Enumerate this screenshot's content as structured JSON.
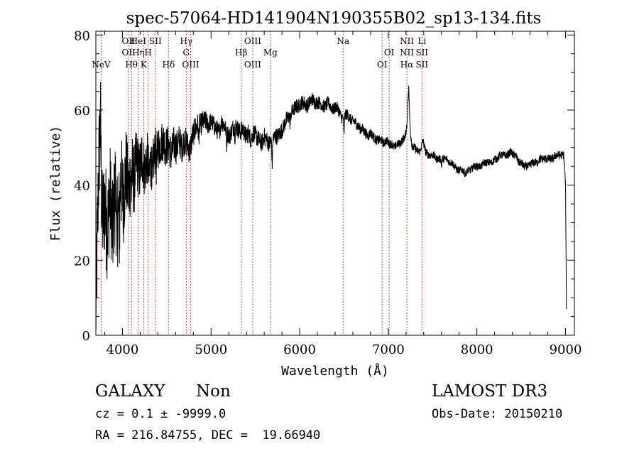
{
  "chart_data": {
    "type": "line",
    "title": "spec-57064-HD141904N190355B02_sp13-134.fits",
    "xlabel": "Wavelength (Å)",
    "ylabel": "Flux (relative)",
    "xlim": [
      3700,
      9100
    ],
    "ylim": [
      0,
      81
    ],
    "xticks": [
      4000,
      5000,
      6000,
      7000,
      8000,
      9000
    ],
    "yticks": [
      0,
      20,
      40,
      60,
      80
    ],
    "grid": false,
    "line_color": "#000000",
    "marker_color": "#b22222",
    "anchors": [
      [
        3700,
        5
      ],
      [
        3730,
        42
      ],
      [
        3750,
        58
      ],
      [
        3770,
        30
      ],
      [
        3800,
        35
      ],
      [
        3830,
        28
      ],
      [
        3860,
        38
      ],
      [
        3890,
        27
      ],
      [
        3920,
        40
      ],
      [
        3950,
        30
      ],
      [
        3980,
        42
      ],
      [
        4010,
        36
      ],
      [
        4040,
        44
      ],
      [
        4070,
        38
      ],
      [
        4100,
        45
      ],
      [
        4130,
        41
      ],
      [
        4160,
        47
      ],
      [
        4190,
        43
      ],
      [
        4220,
        48
      ],
      [
        4250,
        44
      ],
      [
        4280,
        47
      ],
      [
        4310,
        46
      ],
      [
        4340,
        45
      ],
      [
        4370,
        49
      ],
      [
        4400,
        50
      ],
      [
        4430,
        51
      ],
      [
        4460,
        52
      ],
      [
        4490,
        50
      ],
      [
        4520,
        51
      ],
      [
        4550,
        48
      ],
      [
        4580,
        51
      ],
      [
        4610,
        50
      ],
      [
        4640,
        52
      ],
      [
        4670,
        50
      ],
      [
        4700,
        52
      ],
      [
        4730,
        51
      ],
      [
        4760,
        49
      ],
      [
        4790,
        53
      ],
      [
        4820,
        55
      ],
      [
        4850,
        56
      ],
      [
        4880,
        56
      ],
      [
        4910,
        57
      ],
      [
        4940,
        57
      ],
      [
        4970,
        56
      ],
      [
        5000,
        57
      ],
      [
        5030,
        56
      ],
      [
        5060,
        55
      ],
      [
        5090,
        54
      ],
      [
        5120,
        57
      ],
      [
        5150,
        56
      ],
      [
        5180,
        54
      ],
      [
        5210,
        53
      ],
      [
        5240,
        55
      ],
      [
        5270,
        56
      ],
      [
        5300,
        55
      ],
      [
        5330,
        54
      ],
      [
        5360,
        55
      ],
      [
        5390,
        53
      ],
      [
        5420,
        54
      ],
      [
        5450,
        52
      ],
      [
        5480,
        54
      ],
      [
        5510,
        53
      ],
      [
        5540,
        52
      ],
      [
        5570,
        51
      ],
      [
        5600,
        53
      ],
      [
        5630,
        52
      ],
      [
        5660,
        51
      ],
      [
        5690,
        52
      ],
      [
        5720,
        53
      ],
      [
        5750,
        53
      ],
      [
        5780,
        54
      ],
      [
        5810,
        55
      ],
      [
        5840,
        57
      ],
      [
        5870,
        58
      ],
      [
        5900,
        59
      ],
      [
        5930,
        60
      ],
      [
        5960,
        61
      ],
      [
        5990,
        61
      ],
      [
        6020,
        62
      ],
      [
        6050,
        62
      ],
      [
        6080,
        61
      ],
      [
        6110,
        62
      ],
      [
        6140,
        63
      ],
      [
        6170,
        62
      ],
      [
        6200,
        62
      ],
      [
        6230,
        62
      ],
      [
        6260,
        61
      ],
      [
        6290,
        61
      ],
      [
        6320,
        62
      ],
      [
        6350,
        61
      ],
      [
        6380,
        60
      ],
      [
        6410,
        61
      ],
      [
        6440,
        60
      ],
      [
        6470,
        58
      ],
      [
        6500,
        58
      ],
      [
        6530,
        59
      ],
      [
        6560,
        58
      ],
      [
        6590,
        57
      ],
      [
        6620,
        57
      ],
      [
        6650,
        56
      ],
      [
        6680,
        55
      ],
      [
        6710,
        55
      ],
      [
        6740,
        54
      ],
      [
        6770,
        53
      ],
      [
        6800,
        54
      ],
      [
        6830,
        53
      ],
      [
        6860,
        52
      ],
      [
        6890,
        52
      ],
      [
        6920,
        52
      ],
      [
        6950,
        51
      ],
      [
        6980,
        52
      ],
      [
        7010,
        51
      ],
      [
        7040,
        51
      ],
      [
        7070,
        50
      ],
      [
        7100,
        51
      ],
      [
        7130,
        51
      ],
      [
        7160,
        52
      ],
      [
        7190,
        53
      ],
      [
        7210,
        56
      ],
      [
        7230,
        66
      ],
      [
        7250,
        54
      ],
      [
        7270,
        50
      ],
      [
        7300,
        50
      ],
      [
        7330,
        49
      ],
      [
        7360,
        49
      ],
      [
        7390,
        52
      ],
      [
        7420,
        49
      ],
      [
        7450,
        48
      ],
      [
        7480,
        48
      ],
      [
        7510,
        48
      ],
      [
        7540,
        47
      ],
      [
        7570,
        47
      ],
      [
        7600,
        47
      ],
      [
        7630,
        47
      ],
      [
        7660,
        47
      ],
      [
        7690,
        46
      ],
      [
        7720,
        46
      ],
      [
        7750,
        45
      ],
      [
        7780,
        44
      ],
      [
        7810,
        44
      ],
      [
        7840,
        44
      ],
      [
        7870,
        43
      ],
      [
        7900,
        44
      ],
      [
        7930,
        44
      ],
      [
        7960,
        45
      ],
      [
        7990,
        45
      ],
      [
        8020,
        45
      ],
      [
        8050,
        45
      ],
      [
        8080,
        46
      ],
      [
        8110,
        46
      ],
      [
        8140,
        46
      ],
      [
        8170,
        46
      ],
      [
        8200,
        47
      ],
      [
        8230,
        47
      ],
      [
        8260,
        48
      ],
      [
        8290,
        48
      ],
      [
        8320,
        48
      ],
      [
        8350,
        48
      ],
      [
        8380,
        49
      ],
      [
        8410,
        48
      ],
      [
        8440,
        48
      ],
      [
        8470,
        46
      ],
      [
        8500,
        46
      ],
      [
        8530,
        45
      ],
      [
        8560,
        45
      ],
      [
        8590,
        45
      ],
      [
        8620,
        46
      ],
      [
        8650,
        46
      ],
      [
        8680,
        46
      ],
      [
        8710,
        47
      ],
      [
        8740,
        47
      ],
      [
        8770,
        47
      ],
      [
        8800,
        47
      ],
      [
        8830,
        47
      ],
      [
        8860,
        47
      ],
      [
        8890,
        48
      ],
      [
        8920,
        48
      ],
      [
        8950,
        48
      ],
      [
        8980,
        48
      ],
      [
        9000,
        40
      ],
      [
        9010,
        8
      ]
    ],
    "noise": [
      [
        3700,
        15
      ],
      [
        4000,
        13
      ],
      [
        4200,
        8
      ],
      [
        4400,
        6
      ],
      [
        4700,
        4
      ],
      [
        5000,
        2.5
      ],
      [
        5500,
        2.5
      ],
      [
        6000,
        2
      ],
      [
        7000,
        1.2
      ],
      [
        8000,
        1
      ],
      [
        9000,
        1.2
      ]
    ],
    "absorption_dips": [
      [
        3934,
        12
      ],
      [
        3968,
        10
      ],
      [
        4102,
        6
      ],
      [
        4300,
        7
      ],
      [
        4340,
        6
      ],
      [
        4384,
        5
      ],
      [
        4860,
        4
      ],
      [
        5175,
        4
      ],
      [
        5270,
        3
      ],
      [
        5690,
        7
      ],
      [
        5893,
        3
      ],
      [
        6500,
        5
      ],
      [
        7600,
        2
      ]
    ],
    "line_markers": [
      {
        "wavelength": 3760,
        "labels": [
          "NeV"
        ],
        "rows": [
          3
        ]
      },
      {
        "wavelength": 4070,
        "labels": [
          "OII",
          "OII"
        ],
        "rows": [
          0,
          1
        ]
      },
      {
        "wavelength": 4102,
        "labels": [
          "Hθ"
        ],
        "rows": [
          2
        ]
      },
      {
        "wavelength": 4180,
        "labels": [
          "HeI",
          "Hη"
        ],
        "rows": [
          0,
          1
        ]
      },
      {
        "wavelength": 4240,
        "labels": [
          "K"
        ],
        "rows": [
          2
        ]
      },
      {
        "wavelength": 4290,
        "labels": [
          "H"
        ],
        "rows": [
          1
        ]
      },
      {
        "wavelength": 4372,
        "labels": [
          "SII"
        ],
        "rows": [
          0
        ]
      },
      {
        "wavelength": 4520,
        "labels": [
          "Hδ"
        ],
        "rows": [
          2
        ]
      },
      {
        "wavelength": 4720,
        "labels": [
          "Hγ",
          "G"
        ],
        "rows": [
          0,
          1
        ]
      },
      {
        "wavelength": 4770,
        "labels": [
          "OIII"
        ],
        "rows": [
          2
        ]
      },
      {
        "wavelength": 5340,
        "labels": [
          "Hβ"
        ],
        "rows": [
          1
        ]
      },
      {
        "wavelength": 5470,
        "labels": [
          "OIII",
          "OIII"
        ],
        "rows": [
          0,
          2
        ]
      },
      {
        "wavelength": 5670,
        "labels": [
          "Mg"
        ],
        "rows": [
          1
        ]
      },
      {
        "wavelength": 6490,
        "labels": [
          "Na"
        ],
        "rows": [
          0
        ]
      },
      {
        "wavelength": 6930,
        "labels": [
          "OI"
        ],
        "rows": [
          2
        ]
      },
      {
        "wavelength": 7010,
        "labels": [
          "OI"
        ],
        "rows": [
          1
        ]
      },
      {
        "wavelength": 7210,
        "labels": [
          "NII",
          "NII",
          "Hα"
        ],
        "rows": [
          0,
          1,
          2
        ]
      },
      {
        "wavelength": 7380,
        "labels": [
          "Li",
          "SII",
          "SII"
        ],
        "rows": [
          0,
          1,
          2
        ]
      }
    ]
  },
  "info": {
    "object_class": "GALAXY",
    "object_subclass": "Non",
    "survey": "LAMOST DR3",
    "cz_text": "cz = 0.1 ± -9999.0",
    "obs_date_text": "Obs-Date: 20150210",
    "radec_text": "RA = 216.84755, DEC =  19.66940"
  }
}
